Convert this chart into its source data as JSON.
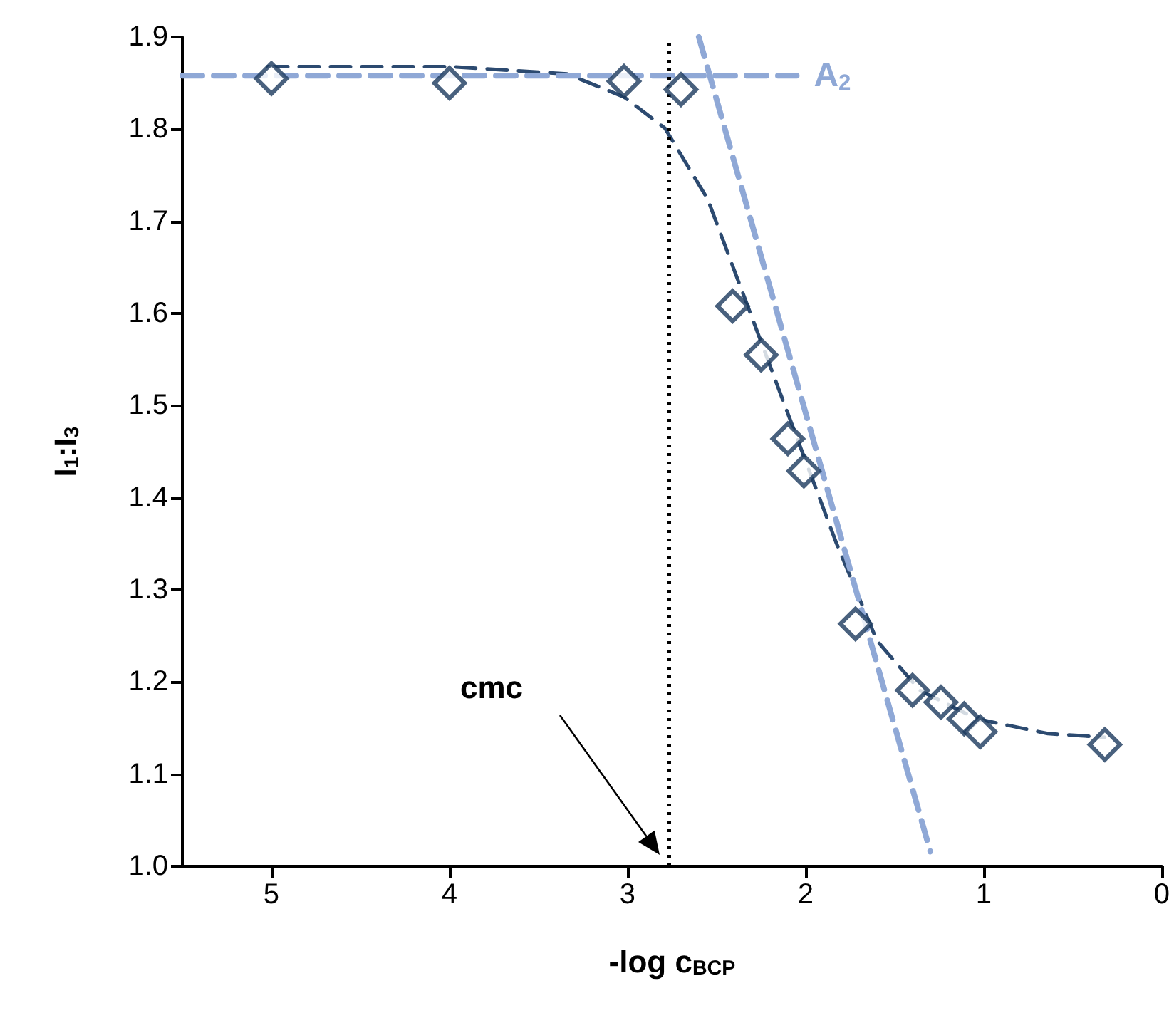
{
  "chart_data": {
    "type": "scatter",
    "xlabel": "-log c$_{BCP}$",
    "ylabel": "I$_{1}$:I$_{3}$",
    "xlim": [
      5.5,
      0
    ],
    "xticks": [
      5,
      4,
      3,
      2,
      1,
      0
    ],
    "ylim": [
      1.0,
      1.9
    ],
    "yticks": [
      {
        "value": 1.0,
        "label": "1.0"
      },
      1.1,
      1.2,
      1.3,
      1.4,
      1.5,
      1.6,
      1.7,
      1.8,
      1.9
    ],
    "series": [
      {
        "marker": "diamond",
        "color": "#1c3a5e",
        "x": [
          5.0,
          4.0,
          3.02,
          2.7,
          2.41,
          2.25,
          2.1,
          2.01,
          1.72,
          1.4,
          1.24,
          1.11,
          1.02,
          0.32
        ],
        "values": [
          1.855,
          1.85,
          1.852,
          1.843,
          1.608,
          1.555,
          1.464,
          1.429,
          1.263,
          1.191,
          1.178,
          1.16,
          1.146,
          1.132
        ]
      },
      {
        "type": "line",
        "marker": "none",
        "line_style": "dashed",
        "color": "#2c4a70",
        "x": [
          5.02,
          4.0,
          3.34,
          3.02,
          2.79,
          2.55,
          2.31,
          2.07,
          1.83,
          1.6,
          1.36,
          1.04,
          0.64,
          0.32
        ],
        "values": [
          1.868,
          1.868,
          1.86,
          1.835,
          1.801,
          1.724,
          1.6,
          1.476,
          1.352,
          1.245,
          1.191,
          1.16,
          1.144,
          1.14
        ]
      },
      {
        "type": "line",
        "name": "A$_{2}$",
        "marker": "none",
        "line_style": "dashed",
        "color": "#8fa8d6",
        "x": [
          5.5,
          2.05
        ],
        "values": [
          1.858,
          1.858
        ]
      },
      {
        "type": "line",
        "marker": "none",
        "line_style": "dashed",
        "color": "#8fa8d6",
        "x": [
          2.6,
          1.3
        ],
        "values": [
          1.9,
          1.016
        ]
      }
    ],
    "ref_lines": [
      {
        "axis": "x",
        "value": 2.77,
        "line_style": "dotted",
        "color": "#000000"
      }
    ],
    "annotations": [
      "cmc"
    ]
  }
}
